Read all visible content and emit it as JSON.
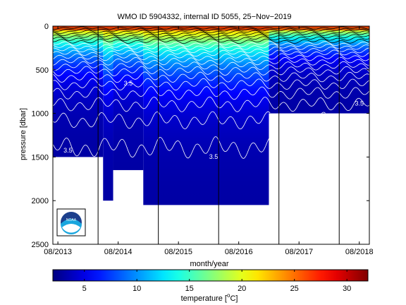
{
  "chart_data": {
    "type": "heatmap",
    "title": "WMO ID 5904332, internal ID 5055, 25−Nov−2019",
    "xlabel": "month/year",
    "ylabel": "pressure [dbar]",
    "x_ticks": [
      "08/2013",
      "08/2014",
      "08/2015",
      "08/2016",
      "08/2017",
      "08/2018"
    ],
    "y_ticks": [
      0,
      500,
      1000,
      1500,
      2000,
      2500
    ],
    "ylim": [
      0,
      2500
    ],
    "y_reversed": true,
    "xlim": [
      "2013-07",
      "2018-10"
    ],
    "colorbar": {
      "label_main": "temperature [",
      "label_sup": "o",
      "label_unit": "C]",
      "range": [
        2,
        32
      ],
      "ticks": [
        5,
        10,
        15,
        20,
        25,
        30
      ],
      "colormap": "jet"
    },
    "contour_interval_c": 1,
    "contour_labels": [
      "3.5",
      "3.5",
      "3.5",
      "3.5"
    ],
    "profile_depth_segments": [
      {
        "start": "2013-07",
        "end": "2014-05",
        "max_pressure": 1500
      },
      {
        "start": "2014-05",
        "end": "2014-07",
        "max_pressure": 2000
      },
      {
        "start": "2014-07",
        "end": "2015-01",
        "max_pressure": 1650
      },
      {
        "start": "2015-01",
        "end": "2017-02",
        "max_pressure": 2050
      },
      {
        "start": "2017-02",
        "end": "2018-10",
        "max_pressure": 1000
      }
    ],
    "surface_temperature_range_c": [
      20,
      30
    ],
    "deep_temperature_c": 3,
    "year_markers": [
      "2014-04",
      "2015-04",
      "2016-04",
      "2017-04",
      "2018-04"
    ],
    "logo": {
      "text": "NOAA",
      "icon": "noaa-logo-icon"
    },
    "colors": {
      "background": "#ffffff",
      "axis": "#000000",
      "contour": "#ffffff",
      "contour_surface": "#000000"
    }
  }
}
